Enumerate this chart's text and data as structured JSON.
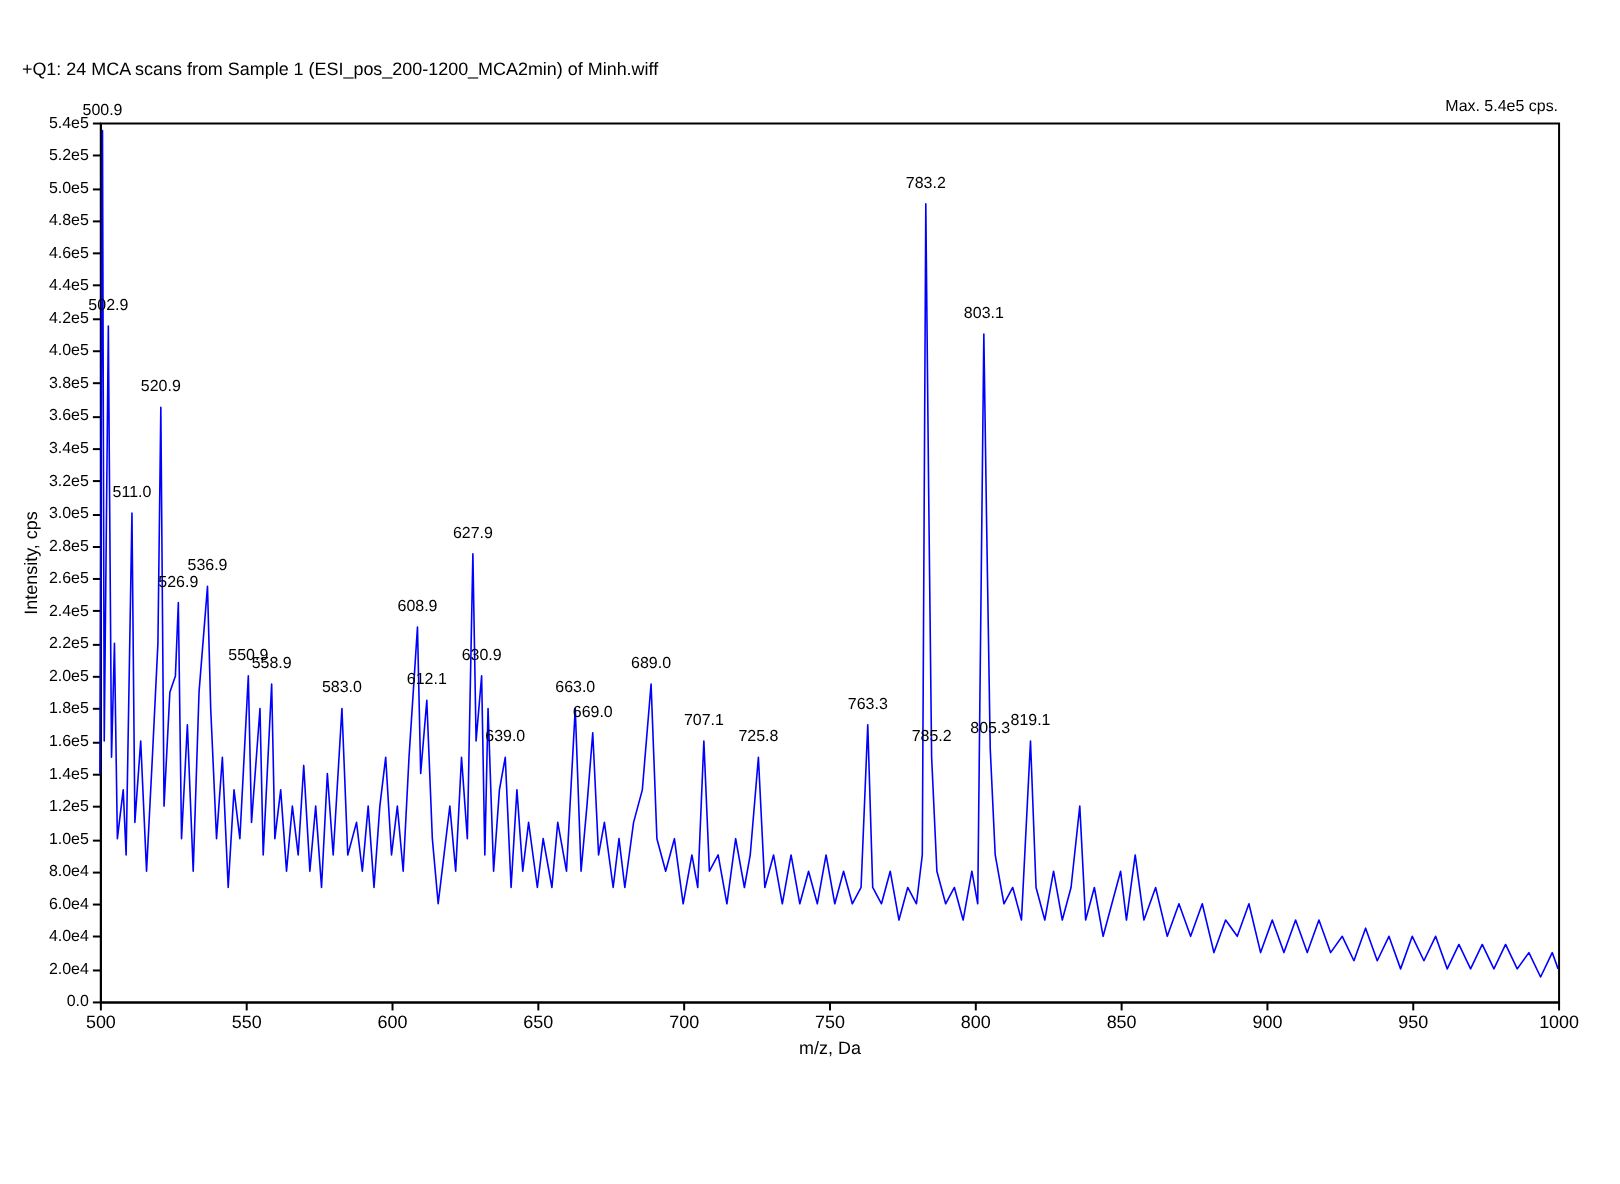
{
  "chart_data": {
    "type": "line",
    "title": "+Q1: 24 MCA scans from Sample 1 (ESI_pos_200-1200_MCA2min) of Minh.wiff",
    "xlabel": "m/z, Da",
    "ylabel": "Intensity, cps",
    "xlim": [
      500,
      1000
    ],
    "xticks": [
      500,
      550,
      600,
      650,
      700,
      750,
      800,
      850,
      900,
      950,
      {
        "value": 1000,
        "label": "1000"
      }
    ],
    "ylim": [
      0,
      540000
    ],
    "yticks": [
      {
        "value": 0,
        "label": "0.0"
      },
      {
        "value": 20000,
        "label": "2.0e4"
      },
      {
        "value": 40000,
        "label": "4.0e4"
      },
      {
        "value": 60000,
        "label": "6.0e4"
      },
      {
        "value": 80000,
        "label": "8.0e4"
      },
      {
        "value": 100000,
        "label": "1.0e5"
      },
      {
        "value": 120000,
        "label": "1.2e5"
      },
      {
        "value": 140000,
        "label": "1.4e5"
      },
      {
        "value": 160000,
        "label": "1.6e5"
      },
      {
        "value": 180000,
        "label": "1.8e5"
      },
      {
        "value": 200000,
        "label": "2.0e5"
      },
      {
        "value": 220000,
        "label": "2.2e5"
      },
      {
        "value": 240000,
        "label": "2.4e5"
      },
      {
        "value": 260000,
        "label": "2.6e5"
      },
      {
        "value": 280000,
        "label": "2.8e5"
      },
      {
        "value": 300000,
        "label": "3.0e5"
      },
      {
        "value": 320000,
        "label": "3.2e5"
      },
      {
        "value": 340000,
        "label": "3.4e5"
      },
      {
        "value": 360000,
        "label": "3.6e5"
      },
      {
        "value": 380000,
        "label": "3.8e5"
      },
      {
        "value": 400000,
        "label": "4.0e5"
      },
      {
        "value": 420000,
        "label": "4.2e5"
      },
      {
        "value": 440000,
        "label": "4.4e5"
      },
      {
        "value": 460000,
        "label": "4.6e5"
      },
      {
        "value": 480000,
        "label": "4.8e5"
      },
      {
        "value": 500000,
        "label": "5.0e5"
      },
      {
        "value": 520000,
        "label": "5.2e5"
      },
      {
        "value": 540000,
        "label": "5.4e5"
      }
    ],
    "grid": false,
    "line_style": "solid",
    "marker": "none",
    "series": [
      {
        "color": "#0000ff",
        "x": [
          500,
          500.9,
          501.5,
          502.9,
          504,
          505,
          506,
          508,
          509,
          511.0,
          512,
          514,
          516,
          518,
          519.9,
          520.9,
          522,
          524,
          525.9,
          526.9,
          528,
          530,
          532,
          534,
          536.9,
          538,
          540,
          542,
          544,
          546,
          548,
          550.9,
          552,
          554.9,
          556,
          558.9,
          560,
          562,
          564,
          566,
          568,
          569.9,
          572,
          574,
          576,
          578,
          580,
          583.0,
          585,
          588,
          590,
          592,
          594,
          596,
          598,
          600,
          602,
          604,
          606,
          608.9,
          610,
          612.1,
          614,
          616,
          618,
          620,
          622,
          624,
          626,
          627.9,
          629,
          630.9,
          632,
          633.1,
          635,
          637,
          639.0,
          641,
          643,
          645,
          647,
          650,
          652,
          655,
          657,
          660,
          663.0,
          665,
          667,
          669.0,
          671,
          673,
          676,
          678,
          680,
          683,
          686,
          689.0,
          691,
          694,
          697,
          700,
          703,
          705,
          707.1,
          709,
          712,
          715,
          718,
          721,
          723,
          725.8,
          728,
          731,
          734,
          737,
          740,
          743,
          746,
          749,
          752,
          755,
          758,
          761,
          763.3,
          765,
          768,
          771,
          774,
          777,
          780,
          782,
          783.2,
          784.2,
          785.2,
          787,
          790,
          793,
          796,
          799,
          801,
          803.1,
          804,
          805.3,
          807,
          810,
          813,
          816,
          819.1,
          821,
          824,
          827,
          830,
          833,
          836,
          838,
          841,
          844,
          847,
          850,
          852,
          855,
          858,
          862,
          866,
          870,
          874,
          878,
          882,
          886,
          890,
          894,
          898,
          902,
          906,
          910,
          914,
          918,
          922,
          926,
          930,
          934,
          938,
          942,
          946,
          950,
          954,
          958,
          962,
          966,
          970,
          974,
          978,
          982,
          986,
          990,
          994,
          998,
          1000
        ],
        "values": [
          140000,
          535000,
          160000,
          415000,
          150000,
          220000,
          100000,
          130000,
          90000,
          300000,
          110000,
          160000,
          80000,
          150000,
          220000,
          365000,
          120000,
          190000,
          200000,
          245000,
          100000,
          170000,
          80000,
          190000,
          255000,
          180000,
          100000,
          150000,
          70000,
          130000,
          100000,
          200000,
          110000,
          180000,
          90000,
          195000,
          100000,
          130000,
          80000,
          120000,
          90000,
          145000,
          80000,
          120000,
          70000,
          140000,
          90000,
          180000,
          90000,
          110000,
          80000,
          120000,
          70000,
          120000,
          150000,
          90000,
          120000,
          80000,
          150000,
          230000,
          140000,
          185000,
          100000,
          60000,
          90000,
          120000,
          80000,
          150000,
          100000,
          275000,
          160000,
          200000,
          90000,
          180000,
          80000,
          130000,
          150000,
          70000,
          130000,
          80000,
          110000,
          70000,
          100000,
          70000,
          110000,
          80000,
          180000,
          80000,
          120000,
          165000,
          90000,
          110000,
          70000,
          100000,
          70000,
          110000,
          130000,
          195000,
          100000,
          80000,
          100000,
          60000,
          90000,
          70000,
          160000,
          80000,
          90000,
          60000,
          100000,
          70000,
          90000,
          150000,
          70000,
          90000,
          60000,
          90000,
          60000,
          80000,
          60000,
          90000,
          60000,
          80000,
          60000,
          70000,
          170000,
          70000,
          60000,
          80000,
          50000,
          70000,
          60000,
          90000,
          490000,
          310000,
          150000,
          80000,
          60000,
          70000,
          50000,
          80000,
          60000,
          410000,
          300000,
          155000,
          90000,
          60000,
          70000,
          50000,
          160000,
          70000,
          50000,
          80000,
          50000,
          70000,
          120000,
          50000,
          70000,
          40000,
          60000,
          80000,
          50000,
          90000,
          50000,
          70000,
          40000,
          60000,
          40000,
          60000,
          30000,
          50000,
          40000,
          60000,
          30000,
          50000,
          30000,
          50000,
          30000,
          50000,
          30000,
          40000,
          25000,
          45000,
          25000,
          40000,
          20000,
          40000,
          25000,
          40000,
          20000,
          35000,
          20000,
          35000,
          20000,
          35000,
          20000,
          30000,
          15000,
          30000,
          20000
        ]
      }
    ],
    "annotations": [
      "Max. 5.4e5 cps.",
      {
        "text": "500.9",
        "x": 500.9,
        "y": 535000
      },
      {
        "text": "502.9",
        "x": 502.9,
        "y": 415000
      },
      {
        "text": "520.9",
        "x": 520.9,
        "y": 365000
      },
      {
        "text": "511.0",
        "x": 511.0,
        "y": 300000
      },
      {
        "text": "526.9",
        "x": 526.9,
        "y": 245000
      },
      {
        "text": "536.9",
        "x": 536.9,
        "y": 255000
      },
      {
        "text": "550.9",
        "x": 550.9,
        "y": 200000
      },
      {
        "text": "558.9",
        "x": 558.9,
        "y": 195000
      },
      {
        "text": "583.0",
        "x": 583.0,
        "y": 180000
      },
      {
        "text": "608.9",
        "x": 608.9,
        "y": 230000
      },
      {
        "text": "612.1",
        "x": 612.1,
        "y": 185000
      },
      {
        "text": "627.9",
        "x": 627.9,
        "y": 275000
      },
      {
        "text": "630.9",
        "x": 630.9,
        "y": 200000
      },
      {
        "text": "639.0",
        "x": 639.0,
        "y": 150000
      },
      {
        "text": "663.0",
        "x": 663.0,
        "y": 180000
      },
      {
        "text": "669.0",
        "x": 669.0,
        "y": 165000
      },
      {
        "text": "689.0",
        "x": 689.0,
        "y": 195000
      },
      {
        "text": "707.1",
        "x": 707.1,
        "y": 160000
      },
      {
        "text": "725.8",
        "x": 725.8,
        "y": 150000
      },
      {
        "text": "763.3",
        "x": 763.3,
        "y": 170000
      },
      {
        "text": "783.2",
        "x": 783.2,
        "y": 490000
      },
      {
        "text": "785.2",
        "x": 785.2,
        "y": 150000
      },
      {
        "text": "803.1",
        "x": 803.1,
        "y": 410000
      },
      {
        "text": "805.3",
        "x": 805.3,
        "y": 155000
      },
      {
        "text": "819.1",
        "x": 819.1,
        "y": 160000
      }
    ]
  }
}
